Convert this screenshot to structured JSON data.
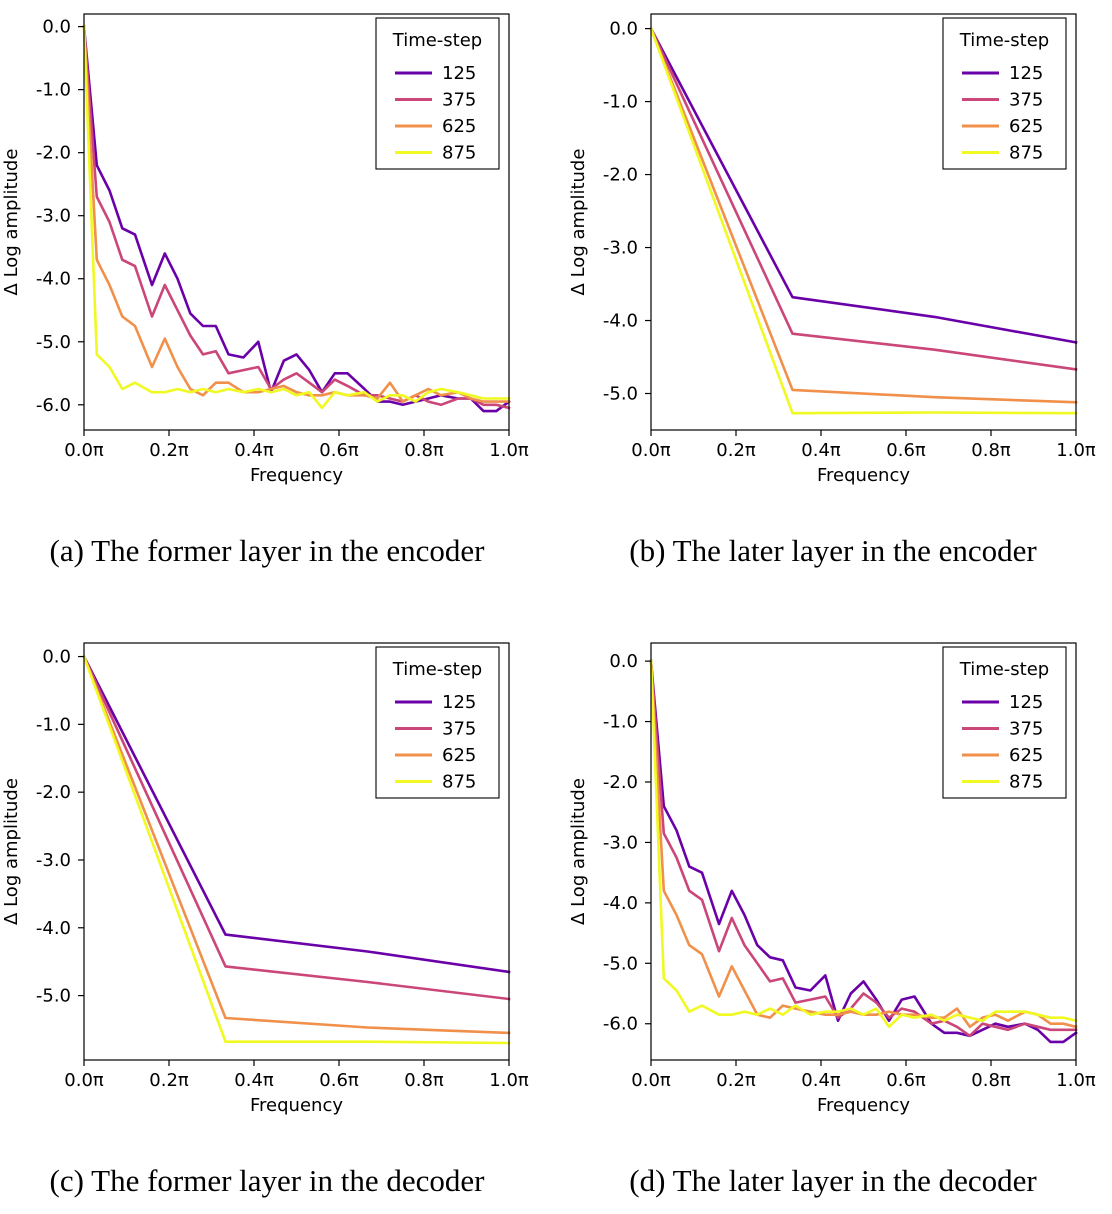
{
  "legend_title": "Time-step",
  "series_names": [
    "125",
    "375",
    "625",
    "875"
  ],
  "series_colors": [
    "#6a00a8",
    "#cb4679",
    "#f0904a",
    "#f0f921"
  ],
  "ylabel": "Δ Log amplitude",
  "xlabel": "Frequency",
  "xticks": [
    "0.0π",
    "0.2π",
    "0.4π",
    "0.6π",
    "0.8π",
    "1.0π"
  ],
  "captions": [
    "(a) The former layer in the encoder",
    "(b) The later layer in the encoder",
    "(c) The former layer in the decoder",
    "(d) The later layer in the decoder"
  ],
  "chart_data": [
    {
      "type": "line",
      "xlabel": "Frequency",
      "ylabel": "Δ Log amplitude",
      "xlim": [
        0,
        1
      ],
      "ylim": [
        -6.4,
        0.2
      ],
      "yticks": [
        0,
        -1,
        -2,
        -3,
        -4,
        -5,
        -6
      ],
      "legend": "upper-right",
      "legend_title": "Time-step",
      "x": [
        0,
        0.03,
        0.06,
        0.09,
        0.12,
        0.16,
        0.19,
        0.22,
        0.25,
        0.28,
        0.31,
        0.34,
        0.375,
        0.41,
        0.44,
        0.47,
        0.5,
        0.53,
        0.56,
        0.59,
        0.62,
        0.66,
        0.69,
        0.72,
        0.75,
        0.78,
        0.81,
        0.84,
        0.88,
        0.91,
        0.94,
        0.97,
        1.0
      ],
      "series": [
        {
          "name": "125",
          "values": [
            0,
            -2.2,
            -2.6,
            -3.2,
            -3.3,
            -4.1,
            -3.6,
            -4.0,
            -4.55,
            -4.75,
            -4.75,
            -5.2,
            -5.25,
            -5.0,
            -5.8,
            -5.3,
            -5.2,
            -5.45,
            -5.8,
            -5.5,
            -5.5,
            -5.75,
            -5.95,
            -5.95,
            -6.0,
            -5.95,
            -5.9,
            -5.85,
            -5.9,
            -5.9,
            -6.1,
            -6.1,
            -5.95
          ]
        },
        {
          "name": "375",
          "values": [
            0,
            -2.7,
            -3.1,
            -3.7,
            -3.8,
            -4.6,
            -4.1,
            -4.5,
            -4.9,
            -5.2,
            -5.15,
            -5.5,
            -5.45,
            -5.4,
            -5.75,
            -5.6,
            -5.5,
            -5.65,
            -5.8,
            -5.6,
            -5.7,
            -5.85,
            -5.85,
            -5.9,
            -5.95,
            -5.85,
            -5.95,
            -6.0,
            -5.9,
            -5.9,
            -6.0,
            -6.0,
            -6.05
          ]
        },
        {
          "name": "625",
          "values": [
            0,
            -3.7,
            -4.1,
            -4.6,
            -4.75,
            -5.4,
            -4.95,
            -5.4,
            -5.75,
            -5.85,
            -5.65,
            -5.65,
            -5.8,
            -5.8,
            -5.75,
            -5.7,
            -5.8,
            -5.85,
            -5.85,
            -5.8,
            -5.85,
            -5.85,
            -5.9,
            -5.65,
            -5.95,
            -5.85,
            -5.75,
            -5.85,
            -5.8,
            -5.9,
            -5.95,
            -5.95,
            -5.95
          ]
        },
        {
          "name": "875",
          "values": [
            0,
            -5.2,
            -5.4,
            -5.75,
            -5.65,
            -5.8,
            -5.8,
            -5.75,
            -5.8,
            -5.75,
            -5.8,
            -5.75,
            -5.8,
            -5.75,
            -5.8,
            -5.75,
            -5.85,
            -5.8,
            -6.05,
            -5.8,
            -5.85,
            -5.8,
            -5.95,
            -5.85,
            -5.85,
            -5.95,
            -5.8,
            -5.75,
            -5.8,
            -5.85,
            -5.9,
            -5.9,
            -5.9
          ]
        }
      ]
    },
    {
      "type": "line",
      "xlabel": "Frequency",
      "ylabel": "Δ Log amplitude",
      "xlim": [
        0,
        1
      ],
      "ylim": [
        -5.5,
        0.2
      ],
      "yticks": [
        0,
        -1,
        -2,
        -3,
        -4,
        -5
      ],
      "legend": "upper-right",
      "legend_title": "Time-step",
      "x": [
        0,
        0.333,
        0.667,
        1.0
      ],
      "series": [
        {
          "name": "125",
          "values": [
            0,
            -3.68,
            -3.95,
            -4.3
          ]
        },
        {
          "name": "375",
          "values": [
            0,
            -4.18,
            -4.4,
            -4.67
          ]
        },
        {
          "name": "625",
          "values": [
            0,
            -4.95,
            -5.05,
            -5.12
          ]
        },
        {
          "name": "875",
          "values": [
            0,
            -5.27,
            -5.26,
            -5.27
          ]
        }
      ]
    },
    {
      "type": "line",
      "xlabel": "Frequency",
      "ylabel": "Δ Log amplitude",
      "xlim": [
        0,
        1
      ],
      "ylim": [
        -5.95,
        0.2
      ],
      "yticks": [
        0,
        -1,
        -2,
        -3,
        -4,
        -5
      ],
      "legend": "upper-right",
      "legend_title": "Time-step",
      "x": [
        0,
        0.333,
        0.667,
        1.0
      ],
      "series": [
        {
          "name": "125",
          "values": [
            0,
            -4.1,
            -4.35,
            -4.65
          ]
        },
        {
          "name": "375",
          "values": [
            0,
            -4.57,
            -4.8,
            -5.05
          ]
        },
        {
          "name": "625",
          "values": [
            0,
            -5.33,
            -5.47,
            -5.55
          ]
        },
        {
          "name": "875",
          "values": [
            0,
            -5.68,
            -5.68,
            -5.7
          ]
        }
      ]
    },
    {
      "type": "line",
      "xlabel": "Frequency",
      "ylabel": "Δ Log amplitude",
      "xlim": [
        0,
        1
      ],
      "ylim": [
        -6.6,
        0.3
      ],
      "yticks": [
        0,
        -1,
        -2,
        -3,
        -4,
        -5,
        -6
      ],
      "legend": "upper-right",
      "legend_title": "Time-step",
      "x": [
        0,
        0.03,
        0.06,
        0.09,
        0.12,
        0.16,
        0.19,
        0.22,
        0.25,
        0.28,
        0.31,
        0.34,
        0.375,
        0.41,
        0.44,
        0.47,
        0.5,
        0.53,
        0.56,
        0.59,
        0.62,
        0.66,
        0.69,
        0.72,
        0.75,
        0.78,
        0.81,
        0.84,
        0.88,
        0.91,
        0.94,
        0.97,
        1.0
      ],
      "series": [
        {
          "name": "125",
          "values": [
            0,
            -2.4,
            -2.8,
            -3.4,
            -3.5,
            -4.35,
            -3.8,
            -4.2,
            -4.7,
            -4.9,
            -4.95,
            -5.4,
            -5.45,
            -5.2,
            -5.95,
            -5.5,
            -5.3,
            -5.6,
            -5.95,
            -5.6,
            -5.55,
            -6.0,
            -6.15,
            -6.15,
            -6.2,
            -6.1,
            -6.0,
            -6.05,
            -6.0,
            -6.1,
            -6.3,
            -6.3,
            -6.15
          ]
        },
        {
          "name": "375",
          "values": [
            0,
            -2.85,
            -3.25,
            -3.8,
            -3.95,
            -4.8,
            -4.25,
            -4.7,
            -5.0,
            -5.3,
            -5.25,
            -5.65,
            -5.6,
            -5.55,
            -5.9,
            -5.75,
            -5.5,
            -5.65,
            -5.9,
            -5.75,
            -5.8,
            -6.0,
            -5.95,
            -6.05,
            -6.2,
            -6.0,
            -6.05,
            -6.1,
            -6.0,
            -6.05,
            -6.1,
            -6.1,
            -6.1
          ]
        },
        {
          "name": "625",
          "values": [
            0,
            -3.8,
            -4.2,
            -4.7,
            -4.85,
            -5.55,
            -5.05,
            -5.45,
            -5.85,
            -5.9,
            -5.7,
            -5.75,
            -5.8,
            -5.85,
            -5.85,
            -5.8,
            -5.85,
            -5.85,
            -5.8,
            -5.85,
            -5.85,
            -5.9,
            -5.9,
            -5.75,
            -6.05,
            -5.9,
            -5.85,
            -5.95,
            -5.8,
            -5.85,
            -6.0,
            -6.0,
            -6.05
          ]
        },
        {
          "name": "875",
          "values": [
            0,
            -5.25,
            -5.45,
            -5.8,
            -5.7,
            -5.85,
            -5.85,
            -5.8,
            -5.85,
            -5.75,
            -5.85,
            -5.7,
            -5.85,
            -5.8,
            -5.8,
            -5.75,
            -5.85,
            -5.75,
            -6.05,
            -5.85,
            -5.9,
            -5.85,
            -5.95,
            -5.85,
            -5.9,
            -5.95,
            -5.8,
            -5.8,
            -5.8,
            -5.85,
            -5.9,
            -5.9,
            -5.95
          ]
        }
      ]
    }
  ]
}
